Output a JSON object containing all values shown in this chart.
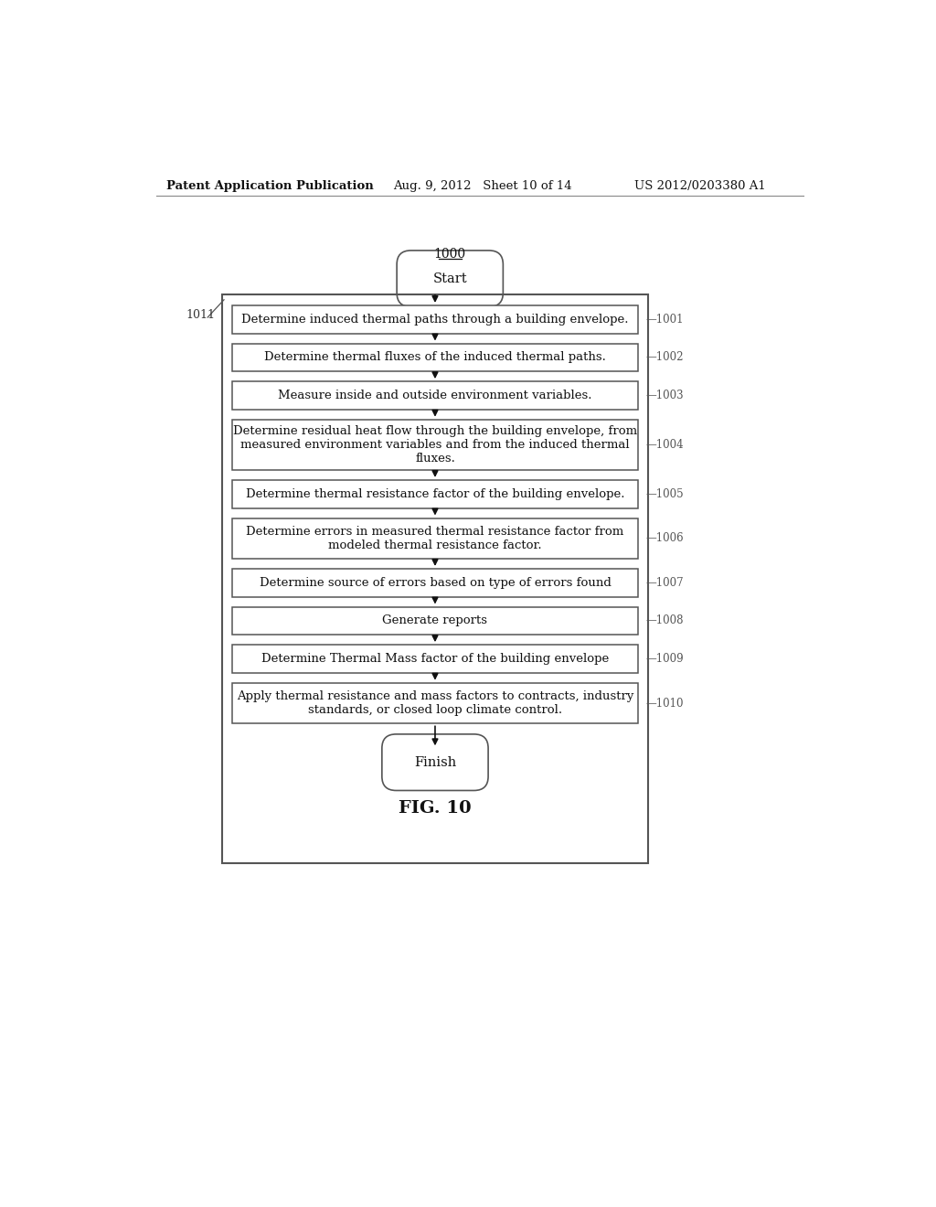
{
  "title": "FIG. 10",
  "diagram_label": "1000",
  "loop_label": "1011",
  "header_left": "Patent Application Publication",
  "header_mid": "Aug. 9, 2012   Sheet 10 of 14",
  "header_right": "US 2012/0203380 A1",
  "start_label": "Start",
  "finish_label": "Finish",
  "boxes": [
    {
      "id": "1001",
      "text": "Determine induced thermal paths through a building envelope.",
      "nlines": 1
    },
    {
      "id": "1002",
      "text": "Determine thermal fluxes of the induced thermal paths.",
      "nlines": 1
    },
    {
      "id": "1003",
      "text": "Measure inside and outside environment variables.",
      "nlines": 1
    },
    {
      "id": "1004",
      "text": "Determine residual heat flow through the building envelope, from\nmeasured environment variables and from the induced thermal\nfluxes.",
      "nlines": 3
    },
    {
      "id": "1005",
      "text": "Determine thermal resistance factor of the building envelope.",
      "nlines": 1
    },
    {
      "id": "1006",
      "text": "Determine errors in measured thermal resistance factor from\nmodeled thermal resistance factor.",
      "nlines": 2
    },
    {
      "id": "1007",
      "text": "Determine source of errors based on type of errors found",
      "nlines": 1
    },
    {
      "id": "1008",
      "text": "Generate reports",
      "nlines": 1
    },
    {
      "id": "1009",
      "text": "Determine Thermal Mass factor of the building envelope",
      "nlines": 1
    },
    {
      "id": "1010",
      "text": "Apply thermal resistance and mass factors to contracts, industry\nstandards, or closed loop climate control.",
      "nlines": 2
    }
  ],
  "bg_color": "#ffffff",
  "box_edge_color": "#555555",
  "text_color": "#111111",
  "arrow_color": "#111111",
  "header_line_color": "#888888",
  "outer_rect_color": "#555555",
  "label_color": "#555555"
}
